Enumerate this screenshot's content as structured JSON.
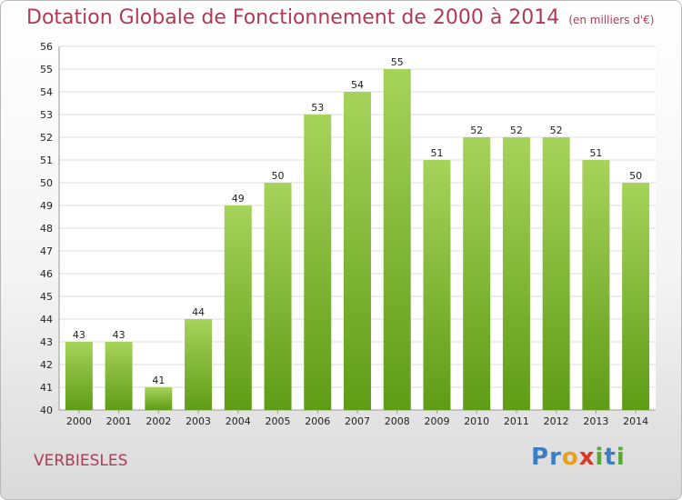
{
  "title": {
    "main": "Dotation Globale de Fonctionnement de 2000 à 2014",
    "unit": "(en milliers d'€)"
  },
  "commune": "VERBIESLES",
  "logo": {
    "text": "Proxiti",
    "letters": [
      "P",
      "r",
      "o",
      "x",
      "i",
      "t",
      "i"
    ],
    "colors": [
      "#3a7fc4",
      "#3a7fc4",
      "#e8a020",
      "#d83a2a",
      "#5aa83a",
      "#3a7fc4",
      "#5aa83a"
    ]
  },
  "colors": {
    "bar_top": "#a6d35a",
    "bar_bottom": "#5f9c16",
    "text_accent": "#b03a55"
  },
  "chart_data": {
    "type": "bar",
    "title": "Dotation Globale de Fonctionnement de 2000 à 2014",
    "subtitle": "(en milliers d'€)",
    "categories": [
      "2000",
      "2001",
      "2002",
      "2003",
      "2004",
      "2005",
      "2006",
      "2007",
      "2008",
      "2009",
      "2010",
      "2011",
      "2012",
      "2013",
      "2014"
    ],
    "values": [
      43,
      43,
      41,
      44,
      49,
      50,
      53,
      54,
      55,
      51,
      52,
      52,
      52,
      51,
      50
    ],
    "ylim": [
      40,
      56
    ],
    "yticks": [
      40,
      41,
      42,
      43,
      44,
      45,
      46,
      47,
      48,
      49,
      50,
      51,
      52,
      53,
      54,
      55,
      56
    ],
    "grid": true,
    "legend": "none"
  }
}
